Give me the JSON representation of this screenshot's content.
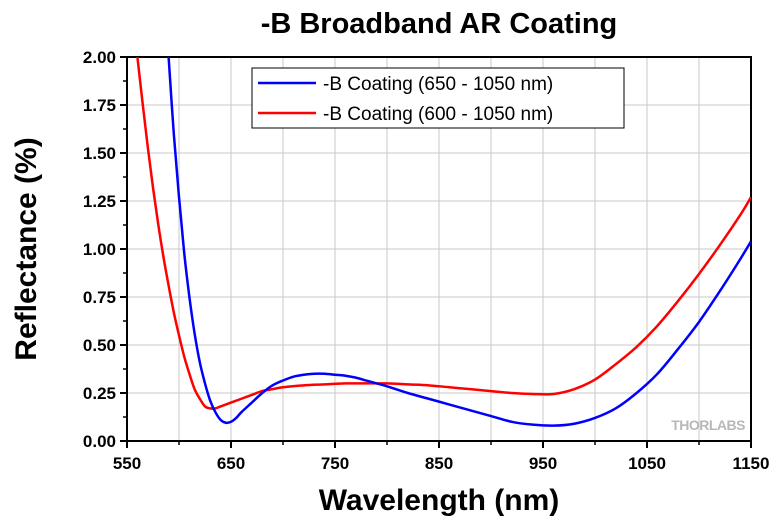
{
  "chart_data": {
    "type": "line",
    "title": "-B Broadband AR Coating",
    "xlabel": "Wavelength (nm)",
    "ylabel": "Reflectance (%)",
    "xlim": [
      550,
      1150
    ],
    "ylim": [
      0,
      2.0
    ],
    "x_ticks": [
      "550",
      "650",
      "750",
      "850",
      "950",
      "1050",
      "1150"
    ],
    "y_ticks": [
      "0.00",
      "0.25",
      "0.50",
      "0.75",
      "1.00",
      "1.25",
      "1.50",
      "1.75",
      "2.00"
    ],
    "grid": true,
    "legend_position": "top-right",
    "watermark": "THORLABS",
    "series": [
      {
        "name": "-B Coating (650 - 1050 nm)",
        "color": "#0000ff",
        "x": [
          590,
          595,
          600,
          605,
          610,
          615,
          620,
          625,
          630,
          635,
          640,
          645,
          650,
          655,
          660,
          670,
          680,
          690,
          700,
          710,
          720,
          730,
          740,
          750,
          760,
          770,
          780,
          790,
          800,
          820,
          840,
          860,
          880,
          900,
          920,
          940,
          960,
          980,
          1000,
          1020,
          1040,
          1060,
          1080,
          1100,
          1120,
          1140,
          1150
        ],
        "y": [
          2.0,
          1.6,
          1.27,
          0.98,
          0.75,
          0.56,
          0.41,
          0.3,
          0.21,
          0.15,
          0.11,
          0.095,
          0.1,
          0.12,
          0.15,
          0.2,
          0.25,
          0.29,
          0.315,
          0.335,
          0.345,
          0.35,
          0.35,
          0.345,
          0.34,
          0.33,
          0.315,
          0.3,
          0.285,
          0.25,
          0.22,
          0.19,
          0.16,
          0.13,
          0.1,
          0.085,
          0.08,
          0.09,
          0.12,
          0.17,
          0.25,
          0.35,
          0.48,
          0.62,
          0.78,
          0.95,
          1.04
        ]
      },
      {
        "name": "-B Coating (600 - 1050 nm)",
        "color": "#ff0000",
        "x": [
          560,
          565,
          570,
          575,
          580,
          585,
          590,
          595,
          600,
          605,
          610,
          615,
          620,
          625,
          630,
          635,
          640,
          650,
          660,
          670,
          680,
          690,
          700,
          720,
          740,
          760,
          780,
          800,
          820,
          840,
          860,
          880,
          900,
          920,
          940,
          960,
          980,
          1000,
          1020,
          1040,
          1060,
          1080,
          1100,
          1120,
          1140,
          1150
        ],
        "y": [
          2.0,
          1.76,
          1.53,
          1.32,
          1.13,
          0.96,
          0.81,
          0.67,
          0.55,
          0.44,
          0.35,
          0.27,
          0.22,
          0.18,
          0.17,
          0.17,
          0.18,
          0.2,
          0.22,
          0.24,
          0.26,
          0.27,
          0.28,
          0.29,
          0.295,
          0.3,
          0.3,
          0.3,
          0.295,
          0.29,
          0.28,
          0.27,
          0.26,
          0.25,
          0.245,
          0.245,
          0.27,
          0.32,
          0.4,
          0.49,
          0.6,
          0.73,
          0.87,
          1.02,
          1.18,
          1.27
        ]
      }
    ]
  }
}
